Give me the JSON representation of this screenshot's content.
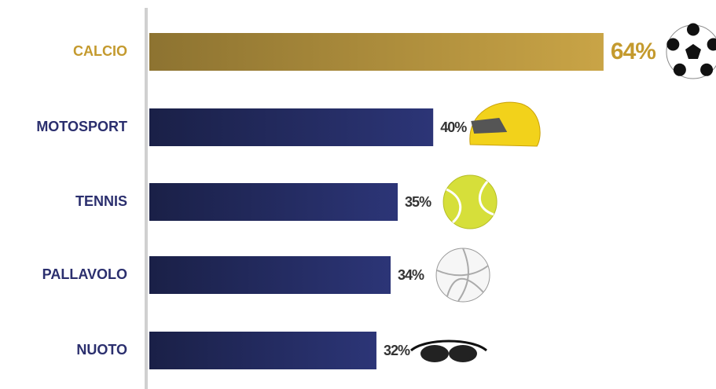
{
  "chart_data": {
    "type": "bar",
    "orientation": "horizontal",
    "categories": [
      "CALCIO",
      "MOTOSPORT",
      "TENNIS",
      "PALLAVOLO",
      "NUOTO"
    ],
    "values": [
      64,
      40,
      35,
      34,
      32
    ],
    "value_labels": [
      "64%",
      "40%",
      "35%",
      "34%",
      "32%"
    ],
    "colors": [
      "#c9a446",
      "#2c3577",
      "#2c3577",
      "#2c3577",
      "#2c3577"
    ],
    "label_colors": [
      "#c49a2e",
      "#2b2f6e",
      "#2b2f6e",
      "#2b2f6e",
      "#2b2f6e"
    ]
  }
}
